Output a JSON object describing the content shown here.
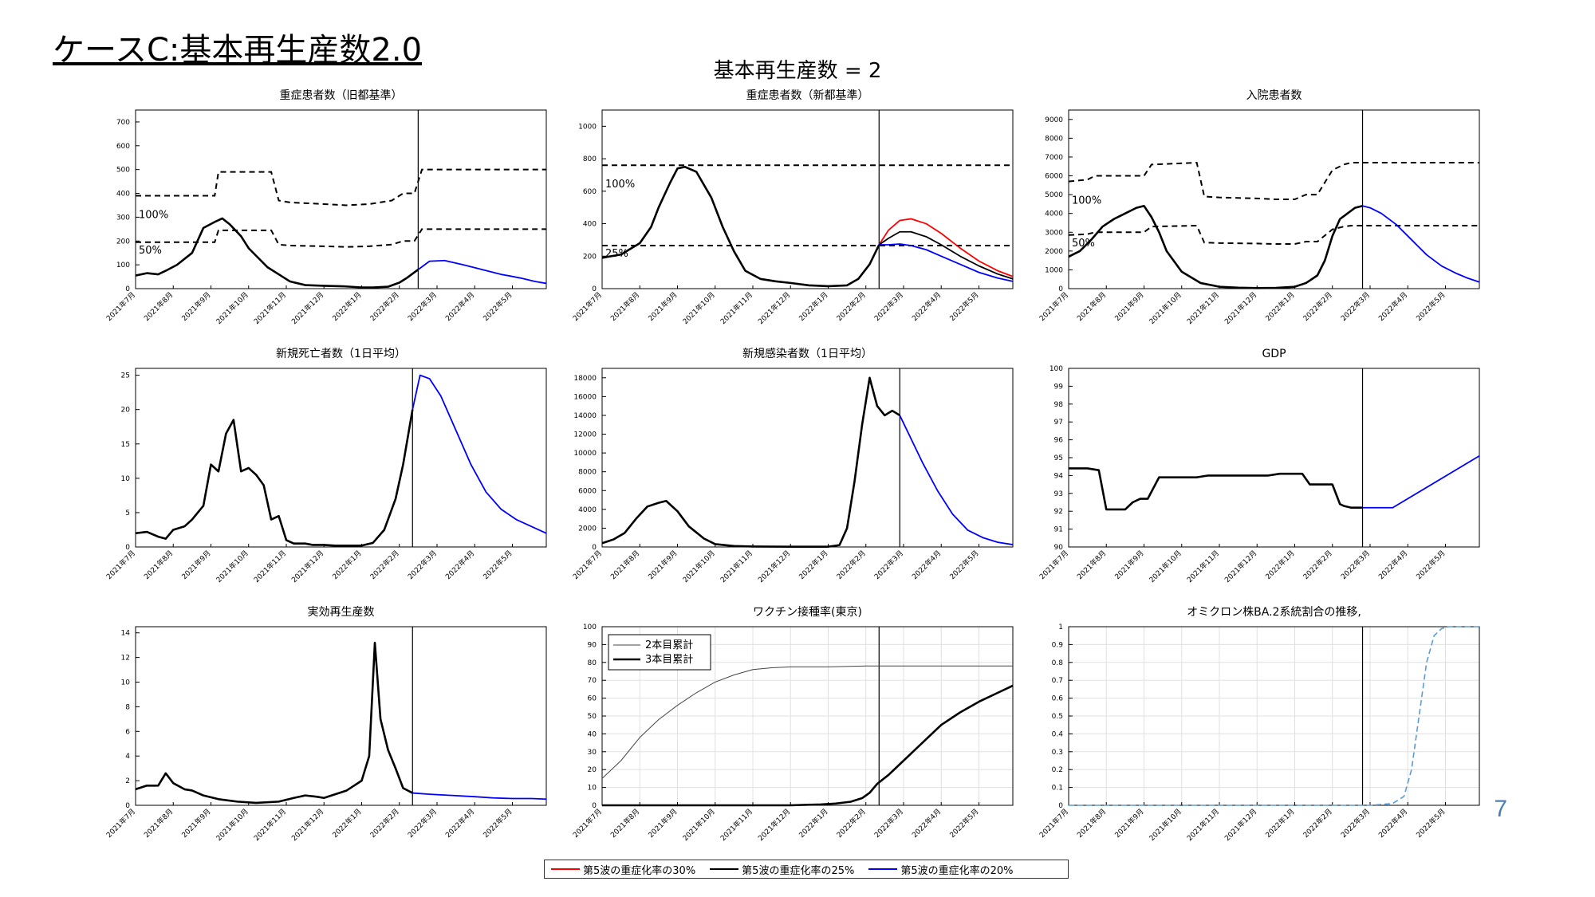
{
  "slide_title": "ケースC:基本再生産数2.0",
  "super_title": "基本再生産数 = 2",
  "page_number": "7",
  "month_labels": [
    "2021年7月",
    "2021年8月",
    "2021年9月",
    "2021年10月",
    "2021年11月",
    "2021年12月",
    "2022年1月",
    "2022年2月",
    "2022年3月",
    "2022年4月",
    "2022年5月"
  ],
  "legend": [
    {
      "label": "第5波の重症化率の30%",
      "color": "#ff0000"
    },
    {
      "label": "第5波の重症化率の25%",
      "color": "#000000"
    },
    {
      "label": "第5波の重症化率の20%",
      "color": "#0000ff"
    }
  ],
  "colors": {
    "projection": "#0000ff",
    "ba2": "#5b9bd5",
    "history": "#000000"
  },
  "chart_data": [
    {
      "type": "line",
      "title": "重症患者数（旧都基準）",
      "ylim": [
        0,
        750
      ],
      "yticks": [
        0,
        100,
        200,
        300,
        400,
        500,
        600,
        700
      ],
      "annotations": [
        "100%",
        "50%"
      ],
      "series": [
        {
          "style": "history",
          "x": [
            0,
            0.3,
            0.6,
            0.8,
            1.1,
            1.5,
            1.8,
            2.1,
            2.3,
            2.5,
            2.8,
            3.0,
            3.5,
            3.8,
            4.1,
            4.5,
            5,
            5.5,
            6,
            6.3,
            6.7,
            7.0,
            7.2
          ],
          "values": [
            55,
            65,
            60,
            75,
            100,
            150,
            255,
            280,
            295,
            270,
            220,
            170,
            90,
            60,
            30,
            15,
            12,
            10,
            5,
            5,
            8,
            25,
            45
          ]
        },
        {
          "style": "history",
          "x": [
            7.2,
            7.5
          ],
          "values": [
            45,
            80
          ]
        },
        {
          "style": "projection",
          "x": [
            7.5,
            7.8,
            8.2,
            8.7,
            9.2,
            9.7,
            10.2,
            10.6,
            10.9
          ],
          "values": [
            80,
            115,
            118,
            100,
            80,
            60,
            45,
            30,
            22
          ]
        }
      ],
      "thresholds": [
        {
          "x": [
            0,
            1.9,
            2.1,
            2.2,
            3.6,
            3.8,
            4.1,
            5,
            5.6,
            6.2,
            6.8,
            7.1,
            7.4,
            7.6,
            10.9
          ],
          "values": [
            390,
            390,
            390,
            490,
            490,
            370,
            362,
            355,
            350,
            355,
            370,
            400,
            400,
            500,
            500
          ]
        },
        {
          "x": [
            0,
            1.9,
            2.1,
            2.2,
            3.6,
            3.8,
            4.1,
            5,
            5.6,
            6.2,
            6.8,
            7.1,
            7.4,
            7.6,
            10.9
          ],
          "values": [
            195,
            195,
            195,
            245,
            245,
            185,
            181,
            178,
            175,
            178,
            185,
            200,
            200,
            250,
            250
          ]
        }
      ],
      "split_x": 7.5
    },
    {
      "type": "line",
      "title": "重症患者数（新都基準）",
      "ylim": [
        0,
        1100
      ],
      "yticks": [
        0,
        200,
        400,
        600,
        800,
        1000
      ],
      "annotations": [
        "100%",
        "25%"
      ],
      "series": [
        {
          "style": "history",
          "x": [
            0,
            0.5,
            1.0,
            1.3,
            1.5,
            1.8,
            2.0,
            2.2,
            2.5,
            2.9,
            3.2,
            3.5,
            3.8,
            4.2,
            4.6,
            5,
            5.5,
            6,
            6.5,
            6.8,
            7.1,
            7.35
          ],
          "values": [
            190,
            210,
            280,
            380,
            500,
            650,
            740,
            750,
            720,
            560,
            380,
            230,
            110,
            60,
            45,
            35,
            20,
            15,
            20,
            60,
            150,
            270
          ]
        },
        {
          "style": "red",
          "x": [
            7.35,
            7.6,
            7.9,
            8.2,
            8.6,
            9.0,
            9.5,
            10.0,
            10.5,
            10.9
          ],
          "values": [
            270,
            360,
            420,
            430,
            400,
            340,
            250,
            170,
            110,
            75
          ]
        },
        {
          "style": "black",
          "x": [
            7.35,
            7.6,
            7.9,
            8.2,
            8.6,
            9.0,
            9.5,
            10.0,
            10.5,
            10.9
          ],
          "values": [
            270,
            310,
            350,
            350,
            320,
            270,
            200,
            140,
            90,
            60
          ]
        },
        {
          "style": "projection",
          "x": [
            7.35,
            7.6,
            7.9,
            8.2,
            8.6,
            9.0,
            9.5,
            10.0,
            10.5,
            10.9
          ],
          "values": [
            270,
            270,
            275,
            265,
            240,
            200,
            150,
            100,
            65,
            45
          ]
        }
      ],
      "thresholds": [
        {
          "x": [
            0,
            10.9
          ],
          "values": [
            760,
            760
          ]
        },
        {
          "x": [
            0,
            10.9
          ],
          "values": [
            265,
            265
          ]
        }
      ],
      "split_x": 7.35
    },
    {
      "type": "line",
      "title": "入院患者数",
      "ylim": [
        0,
        9500
      ],
      "yticks": [
        0,
        1000,
        2000,
        3000,
        4000,
        5000,
        6000,
        7000,
        8000,
        9000
      ],
      "annotations": [
        "100%",
        "50%"
      ],
      "series": [
        {
          "style": "history",
          "x": [
            0,
            0.3,
            0.6,
            0.9,
            1.2,
            1.5,
            1.8,
            2.0,
            2.2,
            2.4,
            2.6,
            3.0,
            3.5,
            4,
            4.5,
            5,
            5.5,
            6,
            6.3,
            6.6,
            6.8,
            7.0,
            7.2,
            7.4,
            7.6,
            7.8
          ],
          "values": [
            1700,
            2000,
            2600,
            3300,
            3700,
            4000,
            4300,
            4400,
            3800,
            3000,
            2000,
            900,
            300,
            100,
            50,
            30,
            40,
            100,
            300,
            700,
            1500,
            2800,
            3700,
            4000,
            4300,
            4400
          ]
        },
        {
          "style": "projection",
          "x": [
            7.8,
            8.0,
            8.3,
            8.7,
            9.1,
            9.5,
            9.9,
            10.3,
            10.6,
            10.9
          ],
          "values": [
            4400,
            4300,
            4000,
            3400,
            2600,
            1800,
            1200,
            800,
            550,
            350
          ]
        }
      ],
      "thresholds": [
        {
          "x": [
            0,
            0.5,
            0.7,
            2.0,
            2.2,
            3.4,
            3.6,
            4.0,
            5,
            5.5,
            6,
            6.3,
            6.6,
            7.0,
            7.3,
            7.5,
            10.9
          ],
          "values": [
            5700,
            5800,
            6000,
            6000,
            6600,
            6700,
            4900,
            4850,
            4800,
            4750,
            4750,
            5000,
            5000,
            6300,
            6600,
            6700,
            6700
          ]
        },
        {
          "x": [
            0,
            0.5,
            0.7,
            2.0,
            2.2,
            3.4,
            3.6,
            4.0,
            5,
            5.5,
            6,
            6.3,
            6.6,
            7.0,
            7.3,
            7.5,
            10.9
          ],
          "values": [
            2850,
            2900,
            3000,
            3000,
            3300,
            3350,
            2450,
            2425,
            2400,
            2375,
            2375,
            2500,
            2500,
            3150,
            3300,
            3350,
            3350
          ]
        }
      ],
      "split_x": 7.8
    },
    {
      "type": "line",
      "title": "新規死亡者数（1日平均）",
      "ylim": [
        0,
        26
      ],
      "yticks": [
        0,
        5,
        10,
        15,
        20,
        25
      ],
      "series": [
        {
          "style": "history",
          "x": [
            0,
            0.3,
            0.6,
            0.8,
            1.0,
            1.3,
            1.5,
            1.8,
            2.0,
            2.2,
            2.4,
            2.6,
            2.8,
            3.0,
            3.2,
            3.4,
            3.6,
            3.8,
            4.0,
            4.2,
            4.5,
            4.7,
            5.0,
            5.3,
            5.6,
            6.0,
            6.3,
            6.6,
            6.9,
            7.1,
            7.35
          ],
          "values": [
            2,
            2.2,
            1.5,
            1.2,
            2.5,
            3,
            4,
            6,
            12,
            11,
            16.5,
            18.5,
            11,
            11.5,
            10.5,
            9,
            4,
            4.5,
            1,
            0.5,
            0.5,
            0.3,
            0.3,
            0.2,
            0.2,
            0.2,
            0.6,
            2.5,
            7,
            12,
            20
          ]
        },
        {
          "style": "projection",
          "x": [
            7.35,
            7.55,
            7.8,
            8.1,
            8.5,
            8.9,
            9.3,
            9.7,
            10.1,
            10.5,
            10.9
          ],
          "values": [
            20,
            25,
            24.5,
            22,
            17,
            12,
            8,
            5.5,
            4,
            3,
            2
          ]
        }
      ],
      "split_x": 7.35
    },
    {
      "type": "line",
      "title": "新規感染者数（1日平均）",
      "ylim": [
        0,
        19000
      ],
      "yticks": [
        0,
        2000,
        4000,
        6000,
        8000,
        10000,
        12000,
        14000,
        16000,
        18000
      ],
      "series": [
        {
          "style": "history",
          "x": [
            0,
            0.3,
            0.6,
            0.9,
            1.2,
            1.5,
            1.7,
            2.0,
            2.3,
            2.7,
            3.0,
            3.5,
            4,
            5,
            6,
            6.3,
            6.5,
            6.7,
            6.9,
            7.1,
            7.3,
            7.5,
            7.7,
            7.9
          ],
          "values": [
            400,
            800,
            1500,
            3000,
            4300,
            4700,
            4900,
            3800,
            2200,
            900,
            300,
            100,
            50,
            30,
            30,
            200,
            2000,
            7000,
            13000,
            18000,
            15000,
            14000,
            14500,
            14000
          ]
        },
        {
          "style": "projection",
          "x": [
            7.9,
            8.2,
            8.5,
            8.9,
            9.3,
            9.7,
            10.1,
            10.5,
            10.9
          ],
          "values": [
            14000,
            11500,
            9000,
            6000,
            3500,
            1800,
            1000,
            500,
            250
          ]
        }
      ],
      "split_x": 7.9
    },
    {
      "type": "line",
      "title": "GDP",
      "ylim": [
        90,
        100
      ],
      "yticks": [
        90,
        91,
        92,
        93,
        94,
        95,
        96,
        97,
        98,
        99,
        100
      ],
      "series": [
        {
          "style": "history",
          "x": [
            0,
            0.5,
            0.8,
            1.0,
            1.5,
            1.7,
            1.9,
            2.1,
            2.4,
            2.6,
            3.4,
            3.7,
            4.3,
            4.5,
            5.3,
            5.6,
            6.2,
            6.4,
            7.0,
            7.2,
            7.3,
            7.5,
            7.8
          ],
          "values": [
            94.4,
            94.4,
            94.3,
            92.1,
            92.1,
            92.5,
            92.7,
            92.7,
            93.9,
            93.9,
            93.9,
            94.0,
            94.0,
            94.0,
            94.0,
            94.1,
            94.1,
            93.5,
            93.5,
            92.4,
            92.3,
            92.2,
            92.2
          ]
        },
        {
          "style": "projection",
          "x": [
            7.8,
            8.6,
            10.9
          ],
          "values": [
            92.2,
            92.2,
            95.1
          ]
        }
      ],
      "split_x": 7.8
    },
    {
      "type": "line",
      "title": "実効再生産数",
      "ylim": [
        0,
        14.5
      ],
      "yticks": [
        0,
        2,
        4,
        6,
        8,
        10,
        12,
        14
      ],
      "series": [
        {
          "style": "history",
          "x": [
            0,
            0.3,
            0.6,
            0.8,
            1.0,
            1.3,
            1.5,
            1.8,
            2.2,
            2.7,
            3.2,
            3.8,
            4.2,
            4.5,
            4.8,
            5.0,
            5.3,
            5.6,
            5.8,
            6.0,
            6.2,
            6.35,
            6.5,
            6.7,
            6.9,
            7.1,
            7.35
          ],
          "values": [
            1.3,
            1.6,
            1.6,
            2.6,
            1.8,
            1.3,
            1.2,
            0.8,
            0.5,
            0.3,
            0.2,
            0.3,
            0.6,
            0.8,
            0.7,
            0.6,
            0.9,
            1.2,
            1.6,
            2.0,
            4.0,
            13.2,
            7.0,
            4.5,
            3.0,
            1.4,
            1.0
          ]
        },
        {
          "style": "projection",
          "x": [
            7.35,
            7.8,
            8.4,
            9.0,
            9.5,
            10.0,
            10.5,
            10.9
          ],
          "values": [
            1.0,
            0.9,
            0.8,
            0.7,
            0.6,
            0.55,
            0.55,
            0.5
          ]
        }
      ],
      "split_x": 7.35
    },
    {
      "type": "line",
      "title": "ワクチン接種率(東京)",
      "ylim": [
        0,
        100
      ],
      "yticks": [
        0,
        10,
        20,
        30,
        40,
        50,
        60,
        70,
        80,
        90,
        100
      ],
      "grid": true,
      "legend": [
        "2本目累計",
        "3本目累計"
      ],
      "series": [
        {
          "name": "2本目累計",
          "style": "thin",
          "x": [
            0,
            0.5,
            1.0,
            1.5,
            2.0,
            2.5,
            3.0,
            3.5,
            4.0,
            4.5,
            5.0,
            6,
            7,
            8,
            10.9
          ],
          "values": [
            15,
            25,
            38,
            48,
            56,
            63,
            69,
            73,
            76,
            77,
            77.5,
            77.5,
            78,
            78,
            78
          ]
        },
        {
          "name": "3本目累計",
          "style": "history",
          "x": [
            0,
            3,
            5,
            5.8,
            6.2,
            6.6,
            6.9,
            7.1,
            7.3,
            7.6,
            8.0,
            8.5,
            9.0,
            9.5,
            10.0,
            10.5,
            10.9
          ],
          "values": [
            0,
            0,
            0,
            0.5,
            1,
            2,
            4,
            7,
            12,
            17,
            25,
            35,
            45,
            52,
            58,
            63,
            67
          ]
        }
      ],
      "split_x": 7.35
    },
    {
      "type": "line",
      "title": "オミクロン株BA.2系統割合の推移,",
      "ylim": [
        0,
        1
      ],
      "yticks": [
        0,
        0.1,
        0.2,
        0.3,
        0.4,
        0.5,
        0.6,
        0.7,
        0.8,
        0.9,
        1
      ],
      "grid": true,
      "series": [
        {
          "style": "ba2",
          "x": [
            0,
            8.0,
            8.6,
            8.9,
            9.1,
            9.3,
            9.5,
            9.7,
            9.9,
            10.1,
            10.9
          ],
          "values": [
            0,
            0,
            0.01,
            0.05,
            0.2,
            0.5,
            0.8,
            0.95,
            0.99,
            1,
            1
          ]
        }
      ],
      "split_x": 7.8
    }
  ]
}
